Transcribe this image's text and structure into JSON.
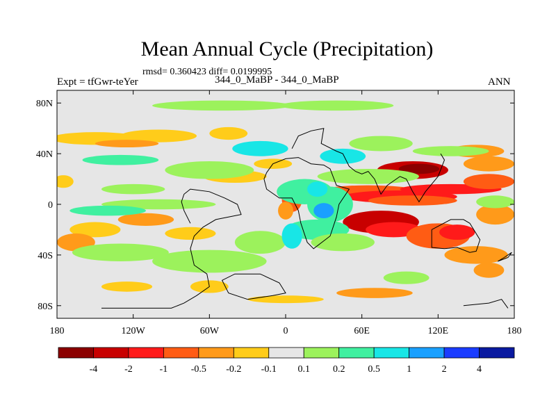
{
  "chart_data": {
    "type": "heatmap",
    "title": "Mean Annual Cycle (Precipitation)",
    "stats_line": "rmsd= 0.360423 diff= 0.0199995",
    "left_label": "Expt = tfGwr-teYer",
    "center_label": "344_0_MaBP - 344_0_MaBP",
    "right_label": "ANN",
    "x_range": [
      -180,
      180
    ],
    "y_range": [
      -90,
      90
    ],
    "x_ticks": [
      {
        "value": -180,
        "label": "180"
      },
      {
        "value": -120,
        "label": "120W"
      },
      {
        "value": -60,
        "label": "60W"
      },
      {
        "value": 0,
        "label": "0"
      },
      {
        "value": 60,
        "label": "60E"
      },
      {
        "value": 120,
        "label": "120E"
      },
      {
        "value": 180,
        "label": "180"
      }
    ],
    "y_ticks": [
      {
        "value": 80,
        "label": "80N"
      },
      {
        "value": 40,
        "label": "40N"
      },
      {
        "value": 0,
        "label": "0"
      },
      {
        "value": -40,
        "label": "40S"
      },
      {
        "value": -80,
        "label": "80S"
      }
    ],
    "colorbar": {
      "labels": [
        "-4",
        "-2",
        "-1",
        "-0.5",
        "-0.2",
        "-0.1",
        "0.1",
        "0.2",
        "0.5",
        "1",
        "2",
        "4"
      ],
      "colors": [
        "#8b0000",
        "#c80000",
        "#ff1a1a",
        "#ff5c14",
        "#ff9a1a",
        "#ffcc1a",
        "#e6e6e6",
        "#9cf25c",
        "#40f0a0",
        "#18e6e6",
        "#1aa0ff",
        "#1a3cff",
        "#0a1aa0"
      ]
    },
    "patches": [
      {
        "lon": 100,
        "lat": 27,
        "rlon": 28,
        "rlat": 7,
        "level": 1
      },
      {
        "lon": 105,
        "lat": 28,
        "rlon": 16,
        "rlat": 4,
        "level": 0
      },
      {
        "lon": 65,
        "lat": 10,
        "rlon": 40,
        "rlat": 5,
        "level": 3
      },
      {
        "lon": 90,
        "lat": 6,
        "rlon": 45,
        "rlat": 5,
        "level": 2
      },
      {
        "lon": 130,
        "lat": 12,
        "rlon": 40,
        "rlat": 4,
        "level": 2
      },
      {
        "lon": 160,
        "lat": 18,
        "rlon": 20,
        "rlat": 6,
        "level": 3
      },
      {
        "lon": 160,
        "lat": 32,
        "rlon": 20,
        "rlat": 6,
        "level": 4
      },
      {
        "lon": 150,
        "lat": 42,
        "rlon": 22,
        "rlat": 5,
        "level": 4
      },
      {
        "lon": 100,
        "lat": 3,
        "rlon": 35,
        "rlat": 4,
        "level": 3
      },
      {
        "lon": 75,
        "lat": -14,
        "rlon": 30,
        "rlat": 9,
        "level": 1
      },
      {
        "lon": 85,
        "lat": -20,
        "rlon": 22,
        "rlat": 6,
        "level": 2
      },
      {
        "lon": 120,
        "lat": -25,
        "rlon": 25,
        "rlat": 10,
        "level": 3
      },
      {
        "lon": 135,
        "lat": -22,
        "rlon": 14,
        "rlat": 6,
        "level": 2
      },
      {
        "lon": 150,
        "lat": -40,
        "rlon": 25,
        "rlat": 7,
        "level": 4
      },
      {
        "lon": 160,
        "lat": -52,
        "rlon": 12,
        "rlat": 6,
        "level": 4
      },
      {
        "lon": 165,
        "lat": -8,
        "rlon": 15,
        "rlat": 8,
        "level": 4
      },
      {
        "lon": 5,
        "lat": 4,
        "rlon": 8,
        "rlat": 10,
        "level": 3
      },
      {
        "lon": 0,
        "lat": -5,
        "rlon": 6,
        "rlat": 7,
        "level": 4
      },
      {
        "lon": -150,
        "lat": 52,
        "rlon": 35,
        "rlat": 5,
        "level": 5
      },
      {
        "lon": -100,
        "lat": 54,
        "rlon": 30,
        "rlat": 5,
        "level": 5
      },
      {
        "lon": -45,
        "lat": 56,
        "rlon": 15,
        "rlat": 5,
        "level": 5
      },
      {
        "lon": -125,
        "lat": 48,
        "rlon": 25,
        "rlat": 3,
        "level": 4
      },
      {
        "lon": -110,
        "lat": -12,
        "rlon": 22,
        "rlat": 5,
        "level": 4
      },
      {
        "lon": -150,
        "lat": -20,
        "rlon": 20,
        "rlat": 6,
        "level": 5
      },
      {
        "lon": -75,
        "lat": -23,
        "rlon": 20,
        "rlat": 5,
        "level": 5
      },
      {
        "lon": -60,
        "lat": -65,
        "rlon": 15,
        "rlat": 5,
        "level": 5
      },
      {
        "lon": -125,
        "lat": -65,
        "rlon": 20,
        "rlat": 4,
        "level": 5
      },
      {
        "lon": 0,
        "lat": -75,
        "rlon": 30,
        "rlat": 3,
        "level": 5
      },
      {
        "lon": 70,
        "lat": -70,
        "rlon": 30,
        "rlat": 4,
        "level": 4
      },
      {
        "lon": -165,
        "lat": -30,
        "rlon": 15,
        "rlat": 7,
        "level": 4
      },
      {
        "lon": -175,
        "lat": 18,
        "rlon": 8,
        "rlat": 5,
        "level": 5
      },
      {
        "lon": -40,
        "lat": 22,
        "rlon": 25,
        "rlat": 5,
        "level": 5
      },
      {
        "lon": -10,
        "lat": 32,
        "rlon": 15,
        "rlat": 4,
        "level": 5
      },
      {
        "lon": -120,
        "lat": 12,
        "rlon": 25,
        "rlat": 4,
        "level": 7
      },
      {
        "lon": -60,
        "lat": 27,
        "rlon": 35,
        "rlat": 7,
        "level": 7
      },
      {
        "lon": -130,
        "lat": 35,
        "rlon": 30,
        "rlat": 4,
        "level": 8
      },
      {
        "lon": -20,
        "lat": 44,
        "rlon": 22,
        "rlat": 6,
        "level": 9
      },
      {
        "lon": 15,
        "lat": 10,
        "rlon": 22,
        "rlat": 10,
        "level": 8
      },
      {
        "lon": 35,
        "lat": 0,
        "rlon": 18,
        "rlat": 14,
        "level": 8
      },
      {
        "lon": 25,
        "lat": 12,
        "rlon": 8,
        "rlat": 6,
        "level": 9
      },
      {
        "lon": 45,
        "lat": 38,
        "rlon": 18,
        "rlat": 6,
        "level": 9
      },
      {
        "lon": 65,
        "lat": 22,
        "rlon": 40,
        "rlat": 6,
        "level": 7
      },
      {
        "lon": 75,
        "lat": 48,
        "rlon": 25,
        "rlat": 6,
        "level": 7
      },
      {
        "lon": -20,
        "lat": -30,
        "rlon": 20,
        "rlat": 9,
        "level": 7
      },
      {
        "lon": -60,
        "lat": -45,
        "rlon": 45,
        "rlat": 9,
        "level": 7
      },
      {
        "lon": -130,
        "lat": -38,
        "rlon": 38,
        "rlat": 7,
        "level": 7
      },
      {
        "lon": 25,
        "lat": -20,
        "rlon": 25,
        "rlat": 8,
        "level": 8
      },
      {
        "lon": 45,
        "lat": -30,
        "rlon": 25,
        "rlat": 7,
        "level": 7
      },
      {
        "lon": 95,
        "lat": -58,
        "rlon": 18,
        "rlat": 5,
        "level": 7
      },
      {
        "lon": -50,
        "lat": 78,
        "rlon": 55,
        "rlat": 4,
        "level": 7
      },
      {
        "lon": 40,
        "lat": 78,
        "rlon": 45,
        "rlat": 4,
        "level": 7
      },
      {
        "lon": -100,
        "lat": 0,
        "rlon": 45,
        "rlat": 4,
        "level": 7
      },
      {
        "lon": -140,
        "lat": -5,
        "rlon": 30,
        "rlat": 4,
        "level": 8
      },
      {
        "lon": 130,
        "lat": 42,
        "rlon": 30,
        "rlat": 4,
        "level": 7
      },
      {
        "lon": 165,
        "lat": 2,
        "rlon": 15,
        "rlat": 5,
        "level": 7
      },
      {
        "lon": 5,
        "lat": -25,
        "rlon": 8,
        "rlat": 10,
        "level": 9
      },
      {
        "lon": 30,
        "lat": -5,
        "rlon": 8,
        "rlat": 6,
        "level": 10
      }
    ],
    "coastlines": [
      [
        [
          -145,
          -82
        ],
        [
          -90,
          -82
        ],
        [
          -80,
          -78
        ],
        [
          -70,
          -72
        ],
        [
          -60,
          -65
        ],
        [
          -62,
          -55
        ],
        [
          -72,
          -48
        ],
        [
          -75,
          -35
        ],
        [
          -72,
          -25
        ],
        [
          -65,
          -18
        ],
        [
          -55,
          -12
        ],
        [
          -35,
          -8
        ],
        [
          -38,
          0
        ],
        [
          -48,
          5
        ],
        [
          -60,
          10
        ],
        [
          -75,
          12
        ],
        [
          -80,
          8
        ],
        [
          -82,
          2
        ],
        [
          -80,
          -5
        ],
        [
          -75,
          -15
        ]
      ],
      [
        [
          -30,
          -75
        ],
        [
          -10,
          -72
        ],
        [
          0,
          -70
        ],
        [
          -5,
          -62
        ],
        [
          -20,
          -55
        ],
        [
          -40,
          -55
        ],
        [
          -50,
          -60
        ],
        [
          -45,
          -70
        ],
        [
          -30,
          -75
        ]
      ],
      [
        [
          -15,
          25
        ],
        [
          -10,
          32
        ],
        [
          0,
          36
        ],
        [
          10,
          37
        ],
        [
          20,
          32
        ],
        [
          30,
          31
        ],
        [
          35,
          28
        ],
        [
          40,
          15
        ],
        [
          50,
          12
        ],
        [
          42,
          0
        ],
        [
          40,
          -10
        ],
        [
          35,
          -25
        ],
        [
          22,
          -35
        ],
        [
          17,
          -30
        ],
        [
          12,
          -15
        ],
        [
          10,
          -5
        ],
        [
          5,
          5
        ],
        [
          -5,
          5
        ],
        [
          -15,
          12
        ],
        [
          -17,
          20
        ],
        [
          -15,
          25
        ]
      ],
      [
        [
          5,
          44
        ],
        [
          10,
          54
        ],
        [
          20,
          58
        ],
        [
          30,
          60
        ],
        [
          28,
          48
        ],
        [
          40,
          42
        ],
        [
          45,
          40
        ],
        [
          50,
          30
        ],
        [
          55,
          26
        ],
        [
          60,
          24
        ],
        [
          65,
          26
        ],
        [
          70,
          20
        ],
        [
          75,
          8
        ],
        [
          80,
          15
        ],
        [
          90,
          22
        ],
        [
          95,
          20
        ],
        [
          100,
          10
        ],
        [
          105,
          2
        ],
        [
          110,
          10
        ],
        [
          120,
          22
        ],
        [
          125,
          35
        ],
        [
          122,
          40
        ]
      ],
      [
        [
          115,
          -20
        ],
        [
          115,
          -34
        ],
        [
          125,
          -35
        ],
        [
          135,
          -34
        ],
        [
          145,
          -38
        ],
        [
          150,
          -37
        ],
        [
          153,
          -28
        ],
        [
          145,
          -15
        ],
        [
          140,
          -12
        ],
        [
          130,
          -12
        ],
        [
          115,
          -20
        ]
      ],
      [
        [
          167,
          -45
        ],
        [
          172,
          -42
        ],
        [
          178,
          -38
        ],
        [
          175,
          -42
        ],
        [
          167,
          -45
        ]
      ],
      [
        [
          140,
          -80
        ],
        [
          160,
          -78
        ],
        [
          170,
          -75
        ],
        [
          175,
          -82
        ]
      ]
    ]
  }
}
